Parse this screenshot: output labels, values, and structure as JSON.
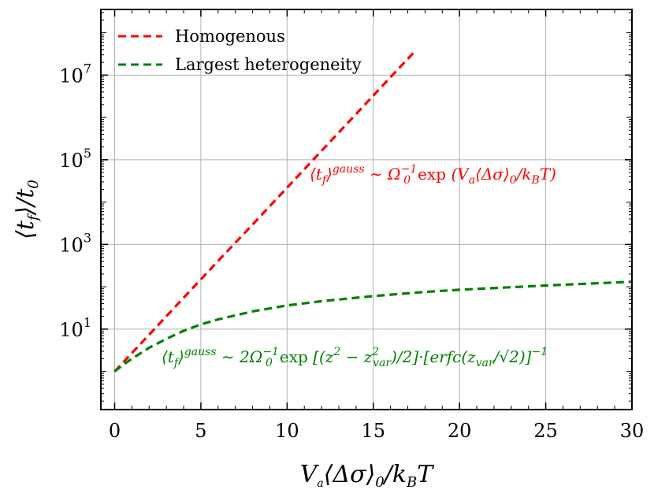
{
  "chart_data": {
    "type": "line",
    "xlabel": "V_a⟨Δσ⟩_0/k_BT",
    "ylabel": "⟨t_f⟩/t_0",
    "xlim": [
      -0.8,
      30
    ],
    "ylim_log10": [
      -0.9,
      8.55
    ],
    "y_scale": "log",
    "grid": true,
    "legend_position": "upper-left",
    "x_ticks": [
      {
        "value": 0,
        "label": "0"
      },
      {
        "value": 5,
        "label": "5"
      },
      {
        "value": 10,
        "label": "10"
      },
      {
        "value": 15,
        "label": "15"
      },
      {
        "value": 20,
        "label": "20"
      },
      {
        "value": 25,
        "label": "25"
      },
      {
        "value": 30,
        "label": "30"
      }
    ],
    "y_ticks": [
      {
        "log10": 1,
        "label": "10",
        "exp": "1"
      },
      {
        "log10": 3,
        "label": "10",
        "exp": "3"
      },
      {
        "log10": 5,
        "label": "10",
        "exp": "5"
      },
      {
        "log10": 7,
        "label": "10",
        "exp": "7"
      }
    ],
    "series": [
      {
        "name": "Homogenous",
        "color": "#ff0000",
        "x": [
          0,
          2,
          4,
          6,
          8,
          10,
          12,
          14,
          16,
          17.5
        ],
        "y_log10": [
          0.0,
          0.87,
          1.74,
          2.61,
          3.47,
          4.34,
          5.21,
          6.08,
          6.95,
          7.6
        ]
      },
      {
        "name": "Largest heterogeneity",
        "color": "#008000",
        "x": [
          0,
          0.5,
          1,
          2,
          3,
          4,
          5,
          6,
          8,
          10,
          12,
          15,
          18,
          20,
          25,
          30
        ],
        "y_log10": [
          0.0,
          0.16,
          0.3,
          0.56,
          0.77,
          0.96,
          1.11,
          1.23,
          1.42,
          1.56,
          1.66,
          1.78,
          1.88,
          1.93,
          2.03,
          2.12
        ]
      }
    ],
    "annotations": [
      {
        "text": "⟨t_f⟩^gauss ∼ Ω_0^{-1}exp(V_a⟨Δσ⟩_0/k_BT)",
        "color": "#ff0000"
      },
      {
        "text": "⟨t_f⟩^gauss ∼ 2Ω_0^{-1}exp[(z² − z_var²)/2]·[erfc(z_var/√2)]^{-1}",
        "color": "#008000"
      }
    ]
  }
}
